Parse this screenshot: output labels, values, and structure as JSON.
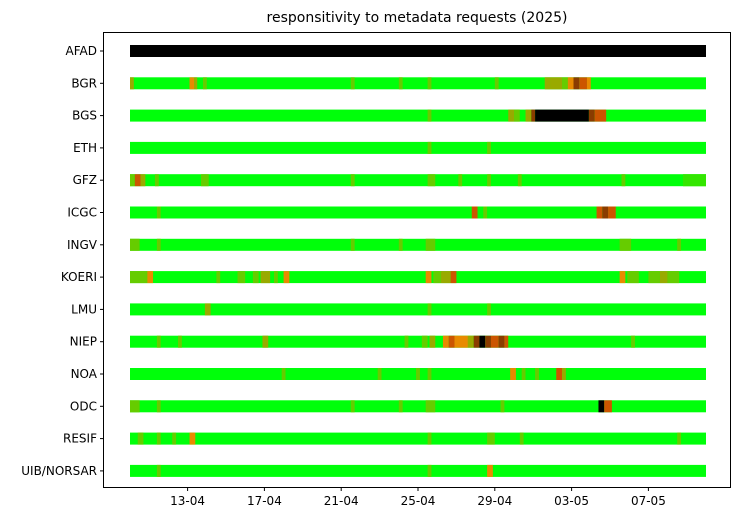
{
  "chart_data": {
    "type": "heatmap",
    "title": "responsitivity to metadata requests (2025)",
    "xlabel": "",
    "ylabel": "",
    "grid": false,
    "x_range": [
      "2025-04-10",
      "2025-05-10"
    ],
    "x_ticks": [
      "13-04",
      "17-04",
      "21-04",
      "25-04",
      "29-04",
      "03-05",
      "07-05"
    ],
    "x_tick_dates": [
      "2025-04-13",
      "2025-04-17",
      "2025-04-21",
      "2025-04-25",
      "2025-04-29",
      "2025-05-03",
      "2025-05-07"
    ],
    "colors": {
      "ok": "#00ff0a",
      "ok_dim": "#33e600",
      "slight": "#66cc00",
      "mid": "#99aa00",
      "orange": "#e88a00",
      "dark_orange": "#cc5500",
      "brown": "#8a3c00",
      "black": "#000000"
    },
    "networks": [
      {
        "name": "AFAD",
        "segments": [
          {
            "start": "2025-04-10",
            "end": "2025-05-10",
            "level": "black"
          }
        ]
      },
      {
        "name": "BGR",
        "segments": [
          {
            "start": "2025-04-10",
            "end": "2025-04-10.2",
            "level": "mid"
          },
          {
            "start": "2025-04-13.1",
            "end": "2025-04-13.35",
            "level": "orange"
          },
          {
            "start": "2025-04-13.35",
            "end": "2025-04-13.5",
            "level": "mid"
          },
          {
            "start": "2025-04-13.8",
            "end": "2025-04-14.0",
            "level": "slight"
          },
          {
            "start": "2025-04-21.5",
            "end": "2025-04-21.7",
            "level": "slight"
          },
          {
            "start": "2025-04-24.0",
            "end": "2025-04-24.2",
            "level": "slight"
          },
          {
            "start": "2025-04-25.5",
            "end": "2025-04-25.7",
            "level": "slight"
          },
          {
            "start": "2025-04-29.0",
            "end": "2025-04-29.2",
            "level": "slight"
          },
          {
            "start": "2025-05-01.6",
            "end": "2025-05-01.9",
            "level": "mid"
          },
          {
            "start": "2025-05-01.9",
            "end": "2025-05-02.5",
            "level": "mid"
          },
          {
            "start": "2025-05-02.5",
            "end": "2025-05-02.8",
            "level": "slight"
          },
          {
            "start": "2025-05-02.8",
            "end": "2025-05-03.1",
            "level": "orange"
          },
          {
            "start": "2025-05-03.1",
            "end": "2025-05-03.4",
            "level": "brown"
          },
          {
            "start": "2025-05-03.4",
            "end": "2025-05-03.8",
            "level": "dark_orange"
          },
          {
            "start": "2025-05-03.8",
            "end": "2025-05-04.0",
            "level": "orange"
          }
        ]
      },
      {
        "name": "BGS",
        "segments": [
          {
            "start": "2025-04-25.5",
            "end": "2025-04-25.7",
            "level": "slight"
          },
          {
            "start": "2025-04-29.7",
            "end": "2025-04-30.0",
            "level": "mid"
          },
          {
            "start": "2025-04-30.0",
            "end": "2025-04-30.3",
            "level": "slight"
          },
          {
            "start": "2025-04-30.6",
            "end": "2025-04-30.9",
            "level": "mid"
          },
          {
            "start": "2025-04-30.9",
            "end": "2025-05-01.1",
            "level": "brown"
          },
          {
            "start": "2025-05-01.1",
            "end": "2025-05-03.9",
            "level": "black"
          },
          {
            "start": "2025-05-03.9",
            "end": "2025-05-04.2",
            "level": "brown"
          },
          {
            "start": "2025-05-04.2",
            "end": "2025-05-04.8",
            "level": "dark_orange"
          }
        ]
      },
      {
        "name": "ETH",
        "segments": [
          {
            "start": "2025-04-25.5",
            "end": "2025-04-25.7",
            "level": "slight"
          },
          {
            "start": "2025-04-28.6",
            "end": "2025-04-28.8",
            "level": "slight"
          }
        ]
      },
      {
        "name": "GFZ",
        "segments": [
          {
            "start": "2025-04-10",
            "end": "2025-04-10.25",
            "level": "slight"
          },
          {
            "start": "2025-04-10.25",
            "end": "2025-04-10.55",
            "level": "dark_orange"
          },
          {
            "start": "2025-04-10.55",
            "end": "2025-04-10.8",
            "level": "mid"
          },
          {
            "start": "2025-04-11.3",
            "end": "2025-04-11.5",
            "level": "slight"
          },
          {
            "start": "2025-04-13.7",
            "end": "2025-04-14.1",
            "level": "slight"
          },
          {
            "start": "2025-04-21.5",
            "end": "2025-04-21.7",
            "level": "slight"
          },
          {
            "start": "2025-04-25.5",
            "end": "2025-04-25.9",
            "level": "slight"
          },
          {
            "start": "2025-04-27.1",
            "end": "2025-04-27.3",
            "level": "slight"
          },
          {
            "start": "2025-04-28.6",
            "end": "2025-04-28.8",
            "level": "slight"
          },
          {
            "start": "2025-04-30.2",
            "end": "2025-04-30.4",
            "level": "slight"
          },
          {
            "start": "2025-05-05.6",
            "end": "2025-05-05.8",
            "level": "slight"
          },
          {
            "start": "2025-05-08.8",
            "end": "2025-05-10",
            "level": "ok_dim"
          }
        ]
      },
      {
        "name": "ICGC",
        "segments": [
          {
            "start": "2025-04-11.4",
            "end": "2025-04-11.6",
            "level": "slight"
          },
          {
            "start": "2025-04-27.8",
            "end": "2025-04-28.1",
            "level": "dark_orange"
          },
          {
            "start": "2025-04-28.4",
            "end": "2025-04-28.6",
            "level": "slight"
          },
          {
            "start": "2025-05-04.3",
            "end": "2025-05-04.6",
            "level": "dark_orange"
          },
          {
            "start": "2025-05-04.6",
            "end": "2025-05-04.9",
            "level": "brown"
          },
          {
            "start": "2025-05-04.9",
            "end": "2025-05-05.3",
            "level": "dark_orange"
          }
        ]
      },
      {
        "name": "INGV",
        "segments": [
          {
            "start": "2025-04-10",
            "end": "2025-04-10.5",
            "level": "slight"
          },
          {
            "start": "2025-04-11.4",
            "end": "2025-04-11.6",
            "level": "slight"
          },
          {
            "start": "2025-04-21.5",
            "end": "2025-04-21.7",
            "level": "slight"
          },
          {
            "start": "2025-04-24.0",
            "end": "2025-04-24.2",
            "level": "slight"
          },
          {
            "start": "2025-04-25.4",
            "end": "2025-04-25.9",
            "level": "slight"
          },
          {
            "start": "2025-05-05.5",
            "end": "2025-05-06.1",
            "level": "slight"
          },
          {
            "start": "2025-05-08.5",
            "end": "2025-05-08.7",
            "level": "slight"
          }
        ]
      },
      {
        "name": "KOERI",
        "segments": [
          {
            "start": "2025-04-10",
            "end": "2025-04-10.9",
            "level": "slight"
          },
          {
            "start": "2025-04-10.9",
            "end": "2025-04-11.2",
            "level": "orange"
          },
          {
            "start": "2025-04-14.5",
            "end": "2025-04-14.7",
            "level": "slight"
          },
          {
            "start": "2025-04-15.6",
            "end": "2025-04-16.0",
            "level": "slight"
          },
          {
            "start": "2025-04-16.4",
            "end": "2025-04-16.7",
            "level": "slight"
          },
          {
            "start": "2025-04-16.8",
            "end": "2025-04-17.3",
            "level": "mid"
          },
          {
            "start": "2025-04-17.5",
            "end": "2025-04-17.7",
            "level": "slight"
          },
          {
            "start": "2025-04-18.0",
            "end": "2025-04-18.3",
            "level": "orange"
          },
          {
            "start": "2025-04-25.4",
            "end": "2025-04-25.7",
            "level": "orange"
          },
          {
            "start": "2025-04-25.8",
            "end": "2025-04-26.2",
            "level": "slight"
          },
          {
            "start": "2025-04-26.2",
            "end": "2025-04-26.7",
            "level": "mid"
          },
          {
            "start": "2025-04-26.7",
            "end": "2025-04-27.0",
            "level": "dark_orange"
          },
          {
            "start": "2025-05-05.5",
            "end": "2025-05-05.8",
            "level": "orange"
          },
          {
            "start": "2025-05-05.9",
            "end": "2025-05-06.5",
            "level": "slight"
          },
          {
            "start": "2025-05-07.0",
            "end": "2025-05-07.6",
            "level": "slight"
          },
          {
            "start": "2025-05-07.6",
            "end": "2025-05-08.0",
            "level": "mid"
          },
          {
            "start": "2025-05-08.0",
            "end": "2025-05-08.6",
            "level": "slight"
          }
        ]
      },
      {
        "name": "LMU",
        "segments": [
          {
            "start": "2025-04-13.9",
            "end": "2025-04-14.2",
            "level": "mid"
          },
          {
            "start": "2025-04-25.5",
            "end": "2025-04-25.7",
            "level": "slight"
          },
          {
            "start": "2025-04-28.6",
            "end": "2025-04-28.8",
            "level": "slight"
          }
        ]
      },
      {
        "name": "NIEP",
        "segments": [
          {
            "start": "2025-04-11.4",
            "end": "2025-04-11.6",
            "level": "slight"
          },
          {
            "start": "2025-04-12.5",
            "end": "2025-04-12.7",
            "level": "slight"
          },
          {
            "start": "2025-04-16.9",
            "end": "2025-04-17.2",
            "level": "mid"
          },
          {
            "start": "2025-04-24.3",
            "end": "2025-04-24.5",
            "level": "slight"
          },
          {
            "start": "2025-04-25.2",
            "end": "2025-04-25.5",
            "level": "slight"
          },
          {
            "start": "2025-04-25.6",
            "end": "2025-04-25.9",
            "level": "mid"
          },
          {
            "start": "2025-04-26.3",
            "end": "2025-04-26.6",
            "level": "orange"
          },
          {
            "start": "2025-04-26.6",
            "end": "2025-04-26.9",
            "level": "dark_orange"
          },
          {
            "start": "2025-04-26.9",
            "end": "2025-04-27.6",
            "level": "orange"
          },
          {
            "start": "2025-04-27.6",
            "end": "2025-04-27.9",
            "level": "mid"
          },
          {
            "start": "2025-04-27.9",
            "end": "2025-04-28.2",
            "level": "brown"
          },
          {
            "start": "2025-04-28.2",
            "end": "2025-04-28.5",
            "level": "black"
          },
          {
            "start": "2025-04-28.5",
            "end": "2025-04-28.8",
            "level": "brown"
          },
          {
            "start": "2025-04-28.8",
            "end": "2025-04-29.2",
            "level": "dark_orange"
          },
          {
            "start": "2025-04-29.2",
            "end": "2025-04-29.5",
            "level": "brown"
          },
          {
            "start": "2025-04-29.5",
            "end": "2025-04-29.7",
            "level": "dark_orange"
          },
          {
            "start": "2025-05-06.1",
            "end": "2025-05-06.3",
            "level": "slight"
          }
        ]
      },
      {
        "name": "NOA",
        "segments": [
          {
            "start": "2025-04-17.9",
            "end": "2025-04-18.1",
            "level": "slight"
          },
          {
            "start": "2025-04-22.9",
            "end": "2025-04-23.1",
            "level": "slight"
          },
          {
            "start": "2025-04-24.9",
            "end": "2025-04-25.1",
            "level": "slight"
          },
          {
            "start": "2025-04-25.5",
            "end": "2025-04-25.7",
            "level": "slight"
          },
          {
            "start": "2025-04-29.8",
            "end": "2025-04-30.1",
            "level": "orange"
          },
          {
            "start": "2025-04-30.4",
            "end": "2025-04-30.6",
            "level": "slight"
          },
          {
            "start": "2025-05-01.1",
            "end": "2025-05-01.3",
            "level": "slight"
          },
          {
            "start": "2025-05-02.2",
            "end": "2025-05-02.5",
            "level": "dark_orange"
          },
          {
            "start": "2025-05-02.5",
            "end": "2025-05-02.7",
            "level": "mid"
          }
        ]
      },
      {
        "name": "ODC",
        "segments": [
          {
            "start": "2025-04-10",
            "end": "2025-04-10.5",
            "level": "slight"
          },
          {
            "start": "2025-04-11.4",
            "end": "2025-04-11.6",
            "level": "slight"
          },
          {
            "start": "2025-04-21.5",
            "end": "2025-04-21.7",
            "level": "slight"
          },
          {
            "start": "2025-04-24.0",
            "end": "2025-04-24.2",
            "level": "slight"
          },
          {
            "start": "2025-04-25.4",
            "end": "2025-04-25.9",
            "level": "slight"
          },
          {
            "start": "2025-04-29.3",
            "end": "2025-04-29.5",
            "level": "slight"
          },
          {
            "start": "2025-05-04.4",
            "end": "2025-05-04.7",
            "level": "black"
          },
          {
            "start": "2025-05-04.7",
            "end": "2025-05-05.1",
            "level": "dark_orange"
          }
        ]
      },
      {
        "name": "RESIF",
        "segments": [
          {
            "start": "2025-04-10.4",
            "end": "2025-04-10.7",
            "level": "slight"
          },
          {
            "start": "2025-04-11.4",
            "end": "2025-04-11.6",
            "level": "slight"
          },
          {
            "start": "2025-04-12.2",
            "end": "2025-04-12.4",
            "level": "slight"
          },
          {
            "start": "2025-04-13.1",
            "end": "2025-04-13.4",
            "level": "orange"
          },
          {
            "start": "2025-04-25.5",
            "end": "2025-04-25.7",
            "level": "slight"
          },
          {
            "start": "2025-04-28.6",
            "end": "2025-04-29.0",
            "level": "slight"
          },
          {
            "start": "2025-04-30.3",
            "end": "2025-04-30.5",
            "level": "slight"
          },
          {
            "start": "2025-05-08.5",
            "end": "2025-05-08.7",
            "level": "slight"
          }
        ]
      },
      {
        "name": "UIB/NORSAR",
        "segments": [
          {
            "start": "2025-04-11.4",
            "end": "2025-04-11.6",
            "level": "slight"
          },
          {
            "start": "2025-04-25.5",
            "end": "2025-04-25.7",
            "level": "slight"
          },
          {
            "start": "2025-04-28.6",
            "end": "2025-04-28.9",
            "level": "orange"
          }
        ]
      }
    ]
  }
}
